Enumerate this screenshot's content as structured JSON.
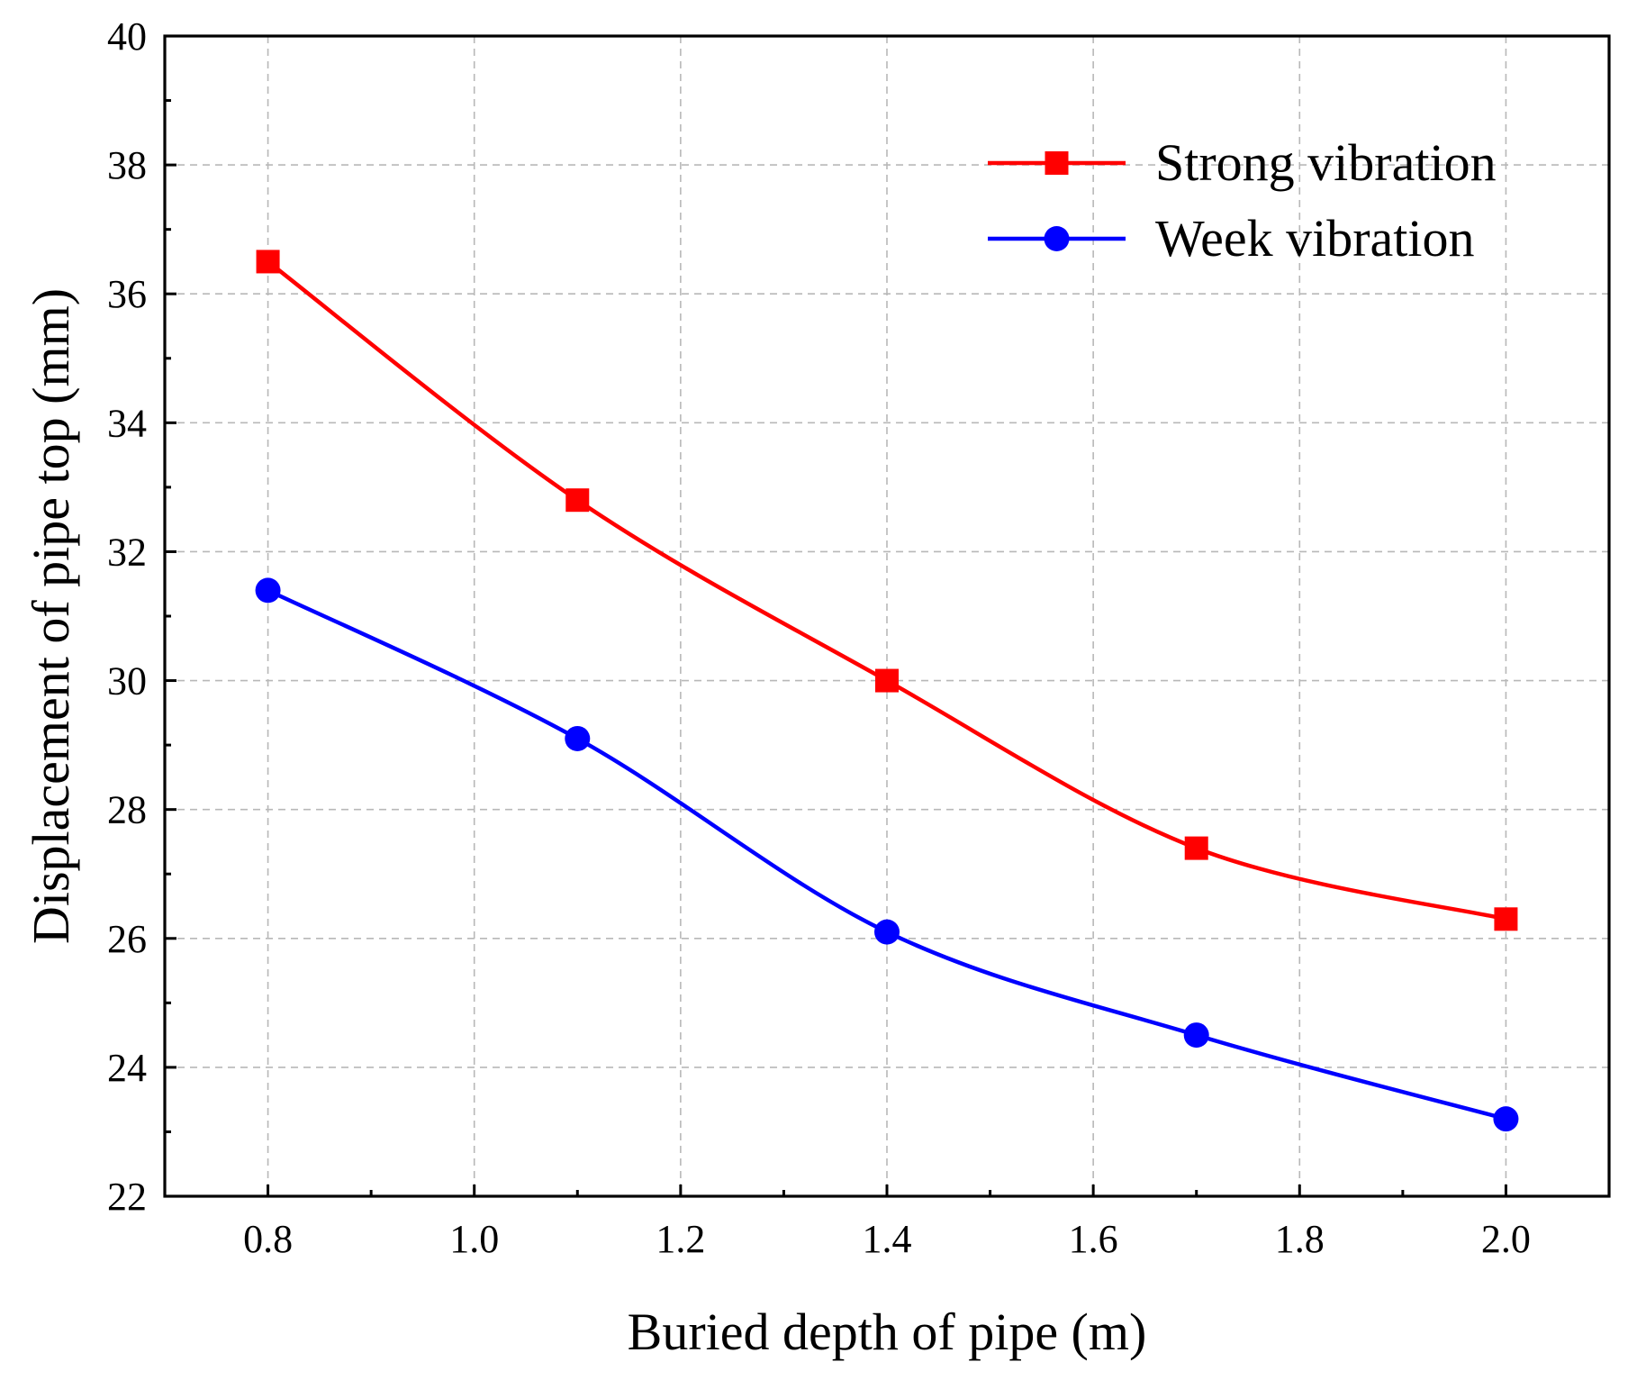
{
  "chart_data": {
    "type": "line",
    "title": "",
    "xlabel": "Buried depth of pipe (m)",
    "ylabel": "Displacement of pipe top (mm)",
    "xlim": [
      0.7,
      2.1
    ],
    "ylim": [
      22,
      40
    ],
    "x_ticks": [
      "0.8",
      "1.0",
      "1.2",
      "1.4",
      "1.6",
      "1.8",
      "2.0"
    ],
    "x_tick_values": [
      0.8,
      1.0,
      1.2,
      1.4,
      1.6,
      1.8,
      2.0
    ],
    "x_minor_tick_values": [
      0.9,
      1.1,
      1.3,
      1.5,
      1.7,
      1.9
    ],
    "y_ticks": [
      "22",
      "24",
      "26",
      "28",
      "30",
      "32",
      "34",
      "36",
      "38",
      "40"
    ],
    "y_tick_values": [
      22,
      24,
      26,
      28,
      30,
      32,
      34,
      36,
      38,
      40
    ],
    "y_minor_tick_values": [
      23,
      25,
      27,
      29,
      31,
      33,
      35,
      37,
      39
    ],
    "grid": true,
    "legend_position": "top-right",
    "x": [
      0.8,
      1.1,
      1.4,
      1.7,
      2.0
    ],
    "series": [
      {
        "name": "Strong vibration",
        "color": "#ff0000",
        "marker": "square",
        "values": [
          36.5,
          32.8,
          30.0,
          27.4,
          26.3
        ]
      },
      {
        "name": "Week vibration",
        "color": "#0000ff",
        "marker": "circle",
        "values": [
          31.4,
          29.1,
          26.1,
          24.5,
          23.2
        ]
      }
    ]
  }
}
